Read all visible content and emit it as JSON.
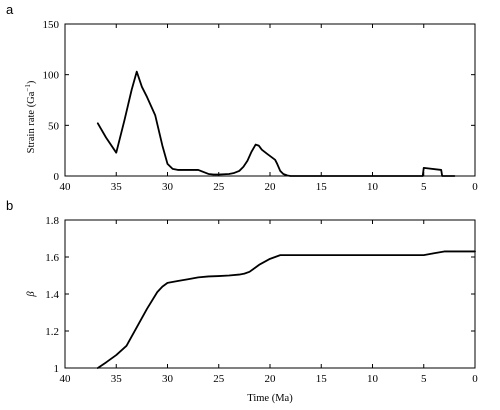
{
  "chart_data": [
    {
      "type": "line",
      "panel": "a",
      "ylabel": "Strain rate (Ga",
      "ylabel_sup": "−1",
      "ylabel_tail": ")",
      "xlabel": "",
      "xlim": [
        40,
        0
      ],
      "ylim": [
        0,
        150
      ],
      "x_reversed": true,
      "xticks": [
        40,
        35,
        30,
        25,
        20,
        15,
        10,
        5,
        0
      ],
      "yticks": [
        0,
        50,
        100,
        150
      ],
      "grid": false,
      "series": [
        {
          "x": [
            36.8,
            36,
            35,
            34.2,
            33.5,
            33,
            32.5,
            32,
            31.2,
            30.5,
            30,
            29.5,
            29,
            28,
            27,
            26,
            25.5,
            25,
            24,
            23.5,
            23,
            22.6,
            22.2,
            21.8,
            21.4,
            21.1,
            20.8,
            20.3,
            19.5,
            19.3,
            19,
            18.7,
            18.3,
            18,
            17,
            10,
            6,
            5.1,
            5.0,
            3.3,
            3.2,
            2
          ],
          "y": [
            52,
            38,
            23,
            55,
            85,
            103,
            88,
            78,
            60,
            30,
            12,
            7,
            6,
            6,
            6,
            2,
            1.5,
            1.5,
            2,
            3,
            5,
            9,
            15,
            24,
            31,
            30,
            26,
            22,
            16,
            12,
            5,
            2,
            0.5,
            0,
            0,
            0,
            0,
            0,
            8,
            6,
            0,
            0
          ]
        }
      ]
    },
    {
      "type": "line",
      "panel": "b",
      "ylabel": "β",
      "xlabel": "Time (Ma)",
      "xlim": [
        40,
        0
      ],
      "ylim": [
        1,
        1.8
      ],
      "x_reversed": true,
      "xticks": [
        40,
        35,
        30,
        25,
        20,
        15,
        10,
        5,
        0
      ],
      "yticks": [
        1,
        1.2,
        1.4,
        1.6,
        1.8
      ],
      "grid": false,
      "series": [
        {
          "x": [
            36.8,
            36,
            35,
            34,
            33,
            32,
            31,
            30.5,
            30,
            29,
            28,
            27,
            26,
            25,
            24,
            23,
            22.5,
            22,
            21.5,
            21,
            20,
            19,
            18,
            10,
            6,
            5,
            4,
            3,
            1,
            0
          ],
          "y": [
            1.0,
            1.03,
            1.07,
            1.12,
            1.22,
            1.32,
            1.41,
            1.44,
            1.46,
            1.47,
            1.48,
            1.49,
            1.495,
            1.497,
            1.5,
            1.505,
            1.51,
            1.52,
            1.54,
            1.56,
            1.59,
            1.61,
            1.61,
            1.61,
            1.61,
            1.61,
            1.62,
            1.63,
            1.63,
            1.63
          ]
        }
      ]
    }
  ]
}
